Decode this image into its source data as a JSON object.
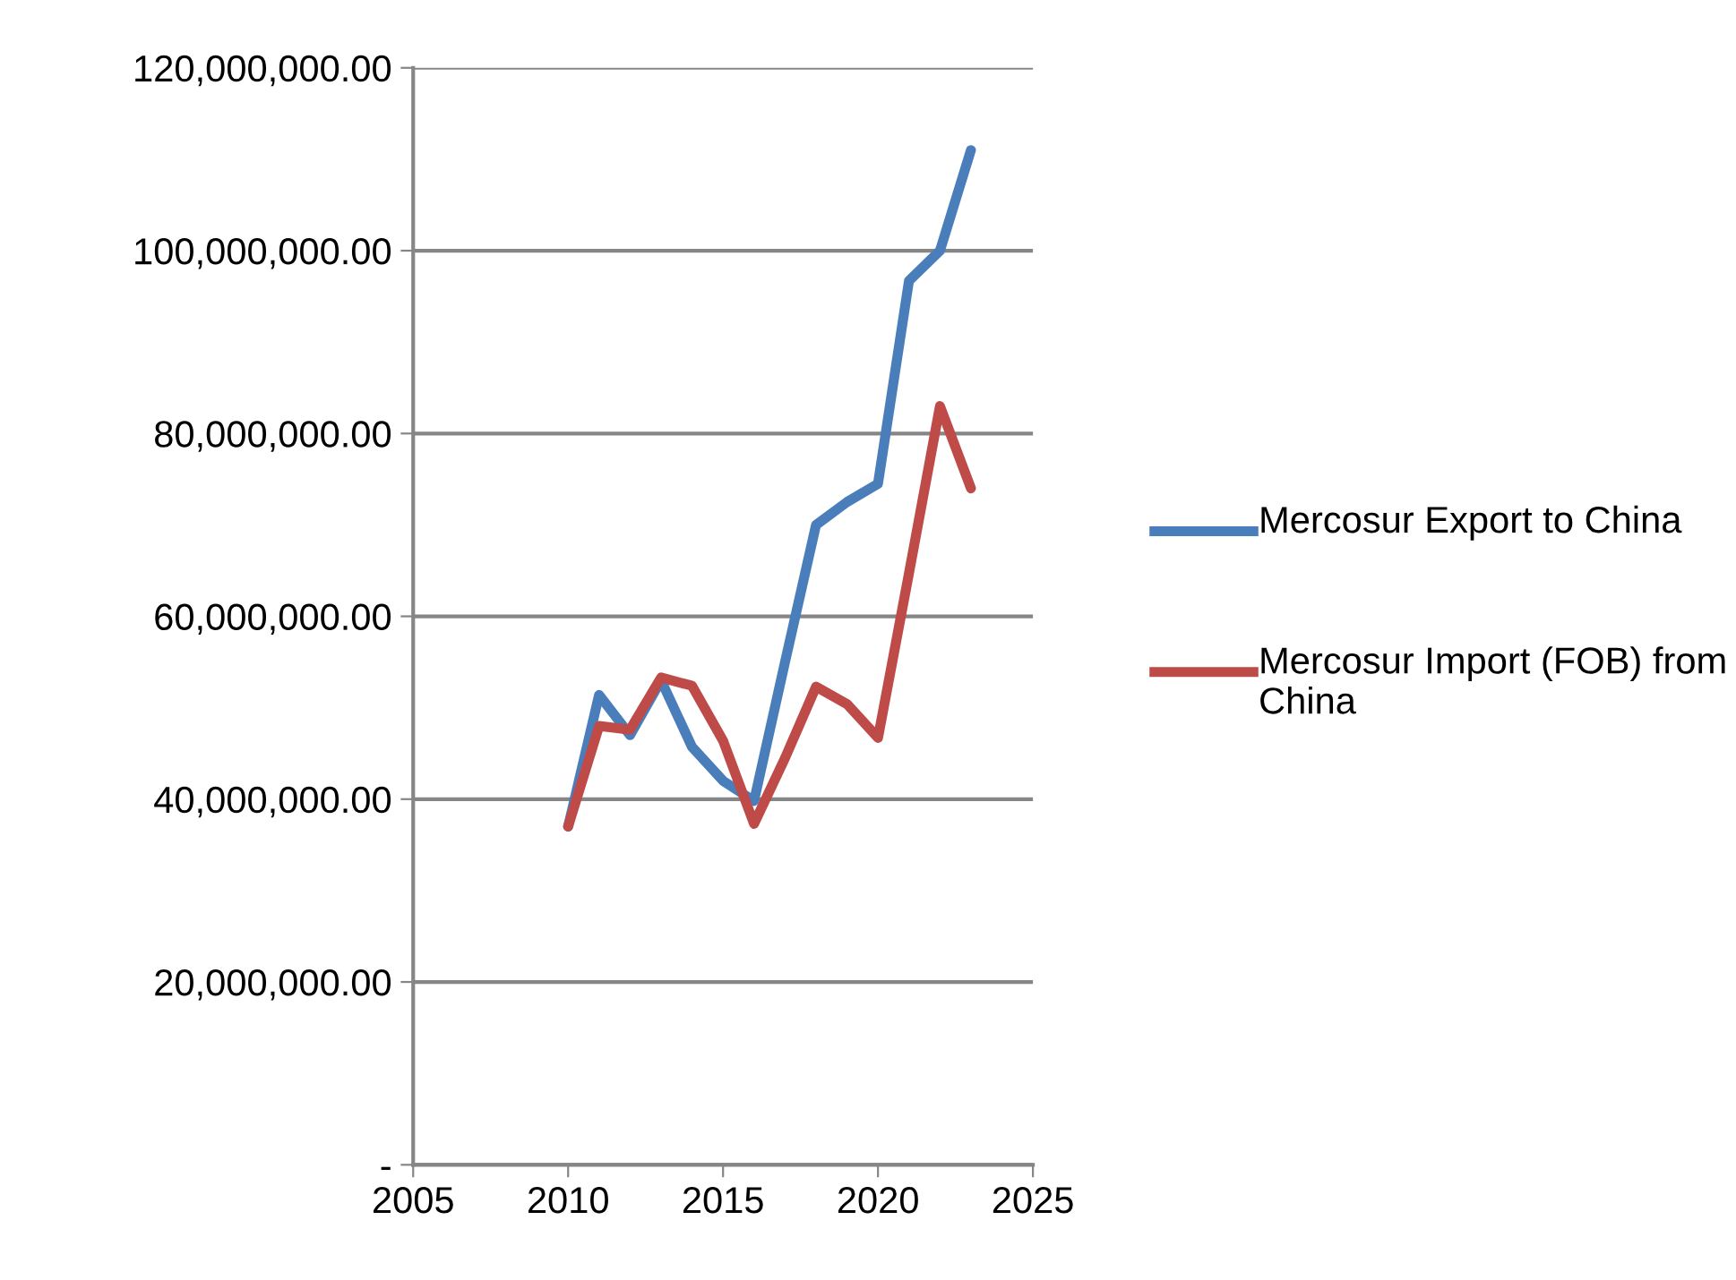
{
  "chart_data": {
    "type": "line",
    "x": [
      2010,
      2011,
      2012,
      2013,
      2014,
      2015,
      2016,
      2017,
      2018,
      2019,
      2020,
      2021,
      2022,
      2023
    ],
    "series": [
      {
        "name": "Mercosur Export to China",
        "color": "#4a7ebb",
        "values": [
          37000000,
          51400000,
          47000000,
          53000000,
          45700000,
          42000000,
          39800000,
          55000000,
          70000000,
          72500000,
          74500000,
          96700000,
          100000000,
          111000000
        ]
      },
      {
        "name": "Mercosur Import (FOB) from China",
        "color": "#be4b48",
        "values": [
          37000000,
          48000000,
          47600000,
          53300000,
          52400000,
          46400000,
          37300000,
          44500000,
          52300000,
          50400000,
          46700000,
          64700000,
          83000000,
          74000000
        ]
      }
    ],
    "xlim": [
      2005,
      2025
    ],
    "xticks": [
      2005,
      2010,
      2015,
      2020,
      2025
    ],
    "ylim": [
      0,
      120000000
    ],
    "yticks": [
      {
        "value": 0,
        "label": "-"
      },
      {
        "value": 20000000,
        "label": "20,000,000.00"
      },
      {
        "value": 40000000,
        "label": "40,000,000.00"
      },
      {
        "value": 60000000,
        "label": "60,000,000.00"
      },
      {
        "value": 80000000,
        "label": "80,000,000.00"
      },
      {
        "value": 100000000,
        "label": "100,000,000.00"
      },
      {
        "value": 120000000,
        "label": "120,000,000.00"
      }
    ],
    "grid": "y",
    "legend": "right",
    "marker": "none",
    "line_style": "solid"
  }
}
